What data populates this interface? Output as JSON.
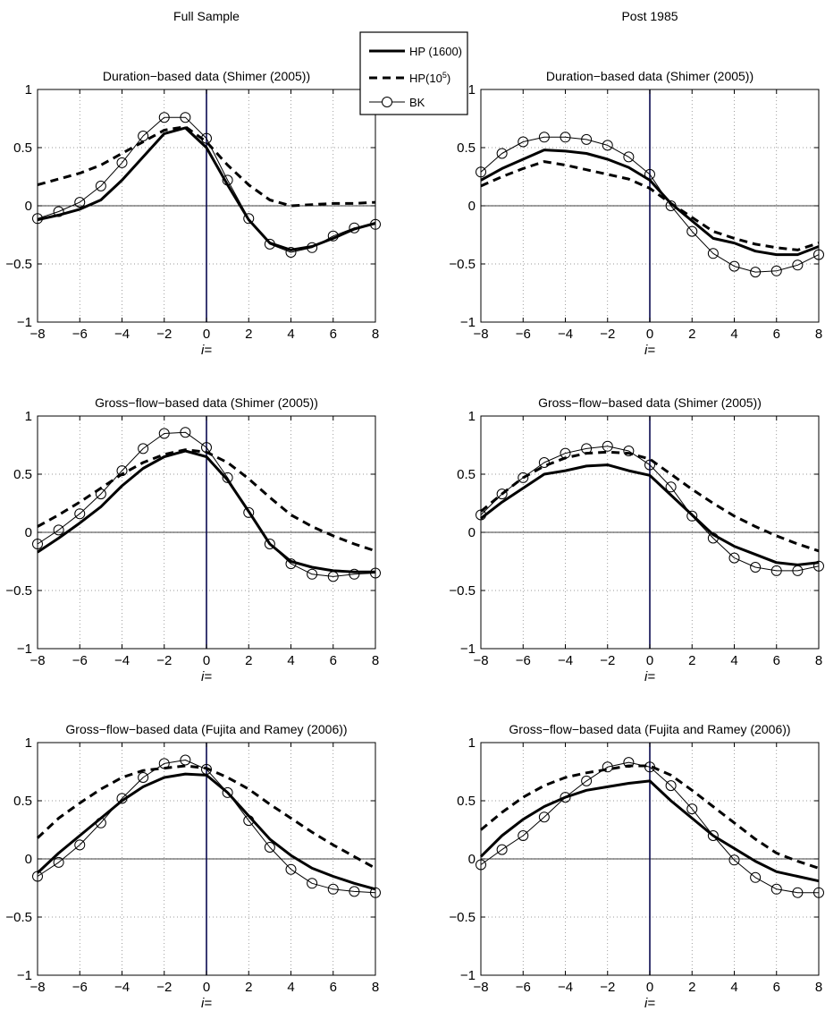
{
  "column_titles": [
    "Full Sample",
    "Post 1985"
  ],
  "legend": {
    "entries": [
      {
        "label": "HP (1600)",
        "style": "thick-solid"
      },
      {
        "label": "HP(10",
        "sup": "5",
        "suffix": ")",
        "style": "dashed"
      },
      {
        "label": "BK",
        "style": "thin-circle"
      }
    ]
  },
  "chart_data": [
    {
      "type": "line",
      "title": "Duration−based data (Shimer (2005))",
      "xlabel": "i=",
      "xlim": [
        -8,
        8
      ],
      "ylim": [
        -1,
        1
      ],
      "xticks": [
        "−8",
        "−6",
        "−4",
        "−2",
        "0",
        "2",
        "4",
        "6",
        "8"
      ],
      "yticks": [
        "−1",
        "−0.5",
        "0",
        "0.5",
        "1"
      ],
      "grid": true,
      "x": [
        -8,
        -7,
        -6,
        -5,
        -4,
        -3,
        -2,
        -1,
        0,
        1,
        2,
        3,
        4,
        5,
        6,
        7,
        8
      ],
      "series": [
        {
          "name": "HP (1600)",
          "values": [
            -0.12,
            -0.08,
            -0.03,
            0.05,
            0.22,
            0.42,
            0.62,
            0.67,
            0.5,
            0.18,
            -0.12,
            -0.32,
            -0.38,
            -0.35,
            -0.28,
            -0.2,
            -0.15
          ]
        },
        {
          "name": "HP(10^5)",
          "values": [
            0.18,
            0.23,
            0.28,
            0.35,
            0.45,
            0.55,
            0.65,
            0.68,
            0.55,
            0.35,
            0.18,
            0.05,
            0.0,
            0.01,
            0.02,
            0.02,
            0.03
          ]
        },
        {
          "name": "BK",
          "values": [
            -0.11,
            -0.05,
            0.03,
            0.17,
            0.37,
            0.6,
            0.76,
            0.76,
            0.58,
            0.22,
            -0.11,
            -0.33,
            -0.4,
            -0.36,
            -0.26,
            -0.19,
            -0.16
          ]
        }
      ]
    },
    {
      "type": "line",
      "title": "Duration−based data (Shimer (2005))",
      "xlabel": "i=",
      "xlim": [
        -8,
        8
      ],
      "ylim": [
        -1,
        1
      ],
      "xticks": [
        "−8",
        "−6",
        "−4",
        "−2",
        "0",
        "2",
        "4",
        "6",
        "8"
      ],
      "yticks": [
        "−1",
        "−0.5",
        "0",
        "0.5",
        "1"
      ],
      "grid": true,
      "x": [
        -8,
        -7,
        -6,
        -5,
        -4,
        -3,
        -2,
        -1,
        0,
        1,
        2,
        3,
        4,
        5,
        6,
        7,
        8
      ],
      "series": [
        {
          "name": "HP (1600)",
          "values": [
            0.22,
            0.32,
            0.4,
            0.48,
            0.47,
            0.45,
            0.4,
            0.33,
            0.22,
            0.02,
            -0.13,
            -0.28,
            -0.32,
            -0.39,
            -0.42,
            -0.42,
            -0.35
          ]
        },
        {
          "name": "HP(10^5)",
          "values": [
            0.17,
            0.25,
            0.32,
            0.38,
            0.35,
            0.31,
            0.27,
            0.23,
            0.15,
            0.02,
            -0.1,
            -0.22,
            -0.28,
            -0.33,
            -0.36,
            -0.38,
            -0.32
          ]
        },
        {
          "name": "BK",
          "values": [
            0.29,
            0.45,
            0.55,
            0.59,
            0.59,
            0.57,
            0.52,
            0.42,
            0.27,
            0.0,
            -0.22,
            -0.41,
            -0.52,
            -0.57,
            -0.56,
            -0.51,
            -0.42
          ]
        }
      ]
    },
    {
      "type": "line",
      "title": "Gross−flow−based data (Shimer (2005))",
      "xlabel": "i=",
      "xlim": [
        -8,
        8
      ],
      "ylim": [
        -1,
        1
      ],
      "xticks": [
        "−8",
        "−6",
        "−4",
        "−2",
        "0",
        "2",
        "4",
        "6",
        "8"
      ],
      "yticks": [
        "−1",
        "−0.5",
        "0",
        "0.5",
        "1"
      ],
      "grid": true,
      "x": [
        -8,
        -7,
        -6,
        -5,
        -4,
        -3,
        -2,
        -1,
        0,
        1,
        2,
        3,
        4,
        5,
        6,
        7,
        8
      ],
      "series": [
        {
          "name": "HP (1600)",
          "values": [
            -0.17,
            -0.05,
            0.08,
            0.22,
            0.4,
            0.55,
            0.65,
            0.7,
            0.65,
            0.45,
            0.18,
            -0.1,
            -0.25,
            -0.3,
            -0.33,
            -0.34,
            -0.34
          ]
        },
        {
          "name": "HP(10^5)",
          "values": [
            0.05,
            0.15,
            0.26,
            0.38,
            0.5,
            0.6,
            0.67,
            0.71,
            0.69,
            0.6,
            0.46,
            0.3,
            0.15,
            0.05,
            -0.03,
            -0.1,
            -0.16
          ]
        },
        {
          "name": "BK",
          "values": [
            -0.1,
            0.02,
            0.16,
            0.33,
            0.53,
            0.72,
            0.85,
            0.86,
            0.73,
            0.47,
            0.17,
            -0.1,
            -0.27,
            -0.36,
            -0.38,
            -0.36,
            -0.35
          ]
        }
      ]
    },
    {
      "type": "line",
      "title": "Gross−flow−based data (Shimer (2005))",
      "xlabel": "i=",
      "xlim": [
        -8,
        8
      ],
      "ylim": [
        -1,
        1
      ],
      "xticks": [
        "−8",
        "−6",
        "−4",
        "−2",
        "0",
        "2",
        "4",
        "6",
        "8"
      ],
      "yticks": [
        "−1",
        "−0.5",
        "0",
        "0.5",
        "1"
      ],
      "grid": true,
      "x": [
        -8,
        -7,
        -6,
        -5,
        -4,
        -3,
        -2,
        -1,
        0,
        1,
        2,
        3,
        4,
        5,
        6,
        7,
        8
      ],
      "series": [
        {
          "name": "HP (1600)",
          "values": [
            0.12,
            0.26,
            0.38,
            0.5,
            0.53,
            0.57,
            0.58,
            0.53,
            0.49,
            0.32,
            0.15,
            -0.02,
            -0.12,
            -0.19,
            -0.26,
            -0.28,
            -0.26
          ]
        },
        {
          "name": "HP(10^5)",
          "values": [
            0.18,
            0.33,
            0.47,
            0.57,
            0.64,
            0.68,
            0.69,
            0.68,
            0.63,
            0.5,
            0.37,
            0.25,
            0.14,
            0.05,
            -0.03,
            -0.1,
            -0.16
          ]
        },
        {
          "name": "BK",
          "values": [
            0.15,
            0.33,
            0.47,
            0.6,
            0.68,
            0.72,
            0.74,
            0.7,
            0.58,
            0.39,
            0.14,
            -0.05,
            -0.22,
            -0.3,
            -0.33,
            -0.33,
            -0.29
          ]
        }
      ]
    },
    {
      "type": "line",
      "title": "Gross−flow−based data (Fujita and Ramey (2006))",
      "xlabel": "i=",
      "xlim": [
        -8,
        8
      ],
      "ylim": [
        -1,
        1
      ],
      "xticks": [
        "−8",
        "−6",
        "−4",
        "−2",
        "0",
        "2",
        "4",
        "6",
        "8"
      ],
      "yticks": [
        "−1",
        "−0.5",
        "0",
        "0.5",
        "1"
      ],
      "grid": true,
      "x": [
        -8,
        -7,
        -6,
        -5,
        -4,
        -3,
        -2,
        -1,
        0,
        1,
        2,
        3,
        4,
        5,
        6,
        7,
        8
      ],
      "series": [
        {
          "name": "HP (1600)",
          "values": [
            -0.12,
            0.05,
            0.2,
            0.35,
            0.5,
            0.62,
            0.7,
            0.73,
            0.72,
            0.57,
            0.37,
            0.17,
            0.03,
            -0.08,
            -0.15,
            -0.21,
            -0.26
          ]
        },
        {
          "name": "HP(10^5)",
          "values": [
            0.18,
            0.35,
            0.48,
            0.6,
            0.7,
            0.76,
            0.78,
            0.8,
            0.78,
            0.7,
            0.6,
            0.47,
            0.35,
            0.23,
            0.12,
            0.02,
            -0.08
          ]
        },
        {
          "name": "BK",
          "values": [
            -0.15,
            -0.03,
            0.12,
            0.31,
            0.52,
            0.7,
            0.82,
            0.85,
            0.77,
            0.57,
            0.33,
            0.1,
            -0.09,
            -0.21,
            -0.26,
            -0.28,
            -0.29
          ]
        }
      ]
    },
    {
      "type": "line",
      "title": "Gross−flow−based data (Fujita and Ramey (2006))",
      "xlabel": "i=",
      "xlim": [
        -8,
        8
      ],
      "ylim": [
        -1,
        1
      ],
      "xticks": [
        "−8",
        "−6",
        "−4",
        "−2",
        "0",
        "2",
        "4",
        "6",
        "8"
      ],
      "yticks": [
        "−1",
        "−0.5",
        "0",
        "0.5",
        "1"
      ],
      "grid": true,
      "x": [
        -8,
        -7,
        -6,
        -5,
        -4,
        -3,
        -2,
        -1,
        0,
        1,
        2,
        3,
        4,
        5,
        6,
        7,
        8
      ],
      "series": [
        {
          "name": "HP (1600)",
          "values": [
            0.02,
            0.2,
            0.34,
            0.45,
            0.53,
            0.59,
            0.62,
            0.65,
            0.67,
            0.5,
            0.35,
            0.2,
            0.09,
            -0.02,
            -0.11,
            -0.15,
            -0.19
          ]
        },
        {
          "name": "HP(10^5)",
          "values": [
            0.25,
            0.4,
            0.53,
            0.63,
            0.7,
            0.74,
            0.77,
            0.8,
            0.8,
            0.72,
            0.59,
            0.45,
            0.31,
            0.17,
            0.05,
            -0.02,
            -0.08
          ]
        },
        {
          "name": "BK",
          "values": [
            -0.05,
            0.08,
            0.2,
            0.36,
            0.53,
            0.67,
            0.79,
            0.83,
            0.79,
            0.63,
            0.43,
            0.2,
            -0.01,
            -0.16,
            -0.26,
            -0.29,
            -0.29
          ]
        }
      ]
    }
  ]
}
